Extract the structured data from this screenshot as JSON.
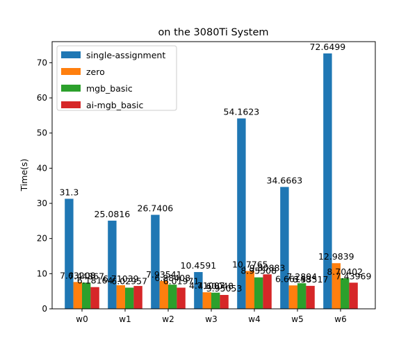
{
  "chart_data": {
    "type": "bar",
    "title": "on the 3080Ti System",
    "xlabel": "",
    "ylabel": "Time(s)",
    "categories": [
      "w0",
      "w1",
      "w2",
      "w3",
      "w4",
      "w5",
      "w6"
    ],
    "ylim": [
      0,
      76
    ],
    "yticks": [
      0,
      10,
      20,
      30,
      40,
      50,
      60,
      70
    ],
    "legend_position": "top-left",
    "grid": false,
    "series": [
      {
        "name": "single-assignment",
        "color": "#1f77b4",
        "values": [
          31.3,
          25.0816,
          26.7406,
          10.4591,
          54.1623,
          34.6663,
          72.6499
        ],
        "labels": [
          "31.3",
          "25.0816",
          "26.7406",
          "10.4591",
          "54.1623",
          "34.6663",
          "72.6499"
        ]
      },
      {
        "name": "zero",
        "color": "#ff7f0e",
        "values": [
          7.63208,
          6.71039,
          7.93541,
          4.71007,
          10.7765,
          6.66148,
          12.9839
        ],
        "labels": [
          "7.63208",
          "6.71039",
          "7.93541",
          "4.71007",
          "10.7765",
          "6.66148",
          "12.9839"
        ]
      },
      {
        "name": "mgb_basic",
        "color": "#2ca02c",
        "values": [
          7.44867,
          6.02957,
          6.88408,
          4.60048,
          8.95508,
          7.2804,
          8.70402
        ],
        "labels": [
          "7.44867",
          "6.02957",
          "6.88408",
          "4.60048",
          "8.95508",
          "7.2804",
          "8.70402"
        ]
      },
      {
        "name": "ai-mgb_basic",
        "color": "#d62728",
        "values": [
          6.18164,
          6.5,
          6.01971,
          3.95053,
          9.80883,
          6.53517,
          7.43969
        ],
        "labels": [
          "6.18164",
          "",
          "6.01971",
          "3.95053",
          "9.80883",
          "6.53517",
          "7.43969"
        ]
      }
    ]
  }
}
